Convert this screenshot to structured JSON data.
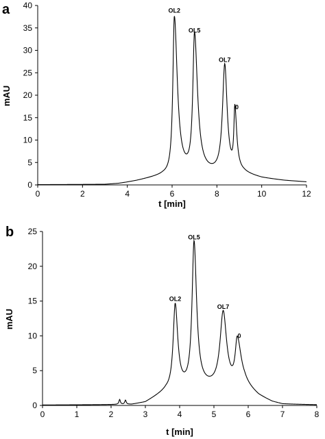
{
  "chart_data": [
    {
      "panel": "a",
      "type": "line",
      "xlabel": "t [min]",
      "ylabel": "mAU",
      "xlim": [
        0,
        12
      ],
      "ylim": [
        0,
        40
      ],
      "xticks": [
        0,
        2,
        4,
        6,
        8,
        10,
        12
      ],
      "yticks": [
        0,
        5,
        10,
        15,
        20,
        25,
        30,
        35,
        40
      ],
      "grid": false,
      "legend": "none",
      "baseline": [
        {
          "x": 0,
          "y": 0.05
        },
        {
          "x": 3.0,
          "y": 0.1
        },
        {
          "x": 3.6,
          "y": 0.3
        },
        {
          "x": 3.9,
          "y": 0.5
        },
        {
          "x": 4.4,
          "y": 0.9
        },
        {
          "x": 4.8,
          "y": 1.3
        },
        {
          "x": 5.2,
          "y": 1.7
        },
        {
          "x": 5.6,
          "y": 2.1
        },
        {
          "x": 9.2,
          "y": 2.2
        },
        {
          "x": 10.0,
          "y": 1.4
        },
        {
          "x": 11.0,
          "y": 0.9
        },
        {
          "x": 12.0,
          "y": 0.6
        }
      ],
      "peaks": [
        {
          "label": "OL2",
          "x": 6.1,
          "y": 37.3,
          "width_left": 0.08,
          "width_right": 0.16
        },
        {
          "label": "OL5",
          "x": 7.0,
          "y": 32.9,
          "width_left": 0.09,
          "width_right": 0.16
        },
        {
          "label": "OL7",
          "x": 8.35,
          "y": 26.3,
          "width_left": 0.12,
          "width_right": 0.13
        },
        {
          "label": "0",
          "x": 8.8,
          "y": 15.8,
          "width_left": 0.05,
          "width_right": 0.1
        }
      ]
    },
    {
      "panel": "b",
      "type": "line",
      "xlabel": "t [min]",
      "ylabel": "mAU",
      "xlim": [
        0,
        8
      ],
      "ylim": [
        0,
        25
      ],
      "xticks": [
        0,
        1,
        2,
        3,
        4,
        5,
        6,
        7,
        8
      ],
      "yticks": [
        0,
        5,
        10,
        15,
        20,
        25
      ],
      "grid": false,
      "legend": "none",
      "baseline": [
        {
          "x": 0,
          "y": 0.05
        },
        {
          "x": 2.6,
          "y": 0.1
        },
        {
          "x": 3.0,
          "y": 0.4
        },
        {
          "x": 3.3,
          "y": 1.2
        },
        {
          "x": 3.6,
          "y": 2.0
        },
        {
          "x": 4.6,
          "y": 2.5
        },
        {
          "x": 5.9,
          "y": 2.5
        },
        {
          "x": 6.3,
          "y": 1.2
        },
        {
          "x": 6.7,
          "y": 0.4
        },
        {
          "x": 7.0,
          "y": 0.1
        },
        {
          "x": 8.0,
          "y": 0.05
        }
      ],
      "small_peaks": [
        {
          "x": 2.25,
          "y": 0.7,
          "w": 0.025
        },
        {
          "x": 2.42,
          "y": 0.6,
          "w": 0.025
        }
      ],
      "peaks": [
        {
          "label": "OL2",
          "x": 3.87,
          "y": 14.3,
          "width_left": 0.07,
          "width_right": 0.09
        },
        {
          "label": "OL5",
          "x": 4.42,
          "y": 23.2,
          "width_left": 0.07,
          "width_right": 0.09
        },
        {
          "label": "OL7",
          "x": 5.27,
          "y": 13.2,
          "width_left": 0.11,
          "width_right": 0.12
        },
        {
          "label": "0",
          "x": 5.68,
          "y": 9.0,
          "width_left": 0.07,
          "width_right": 0.14
        }
      ]
    }
  ]
}
